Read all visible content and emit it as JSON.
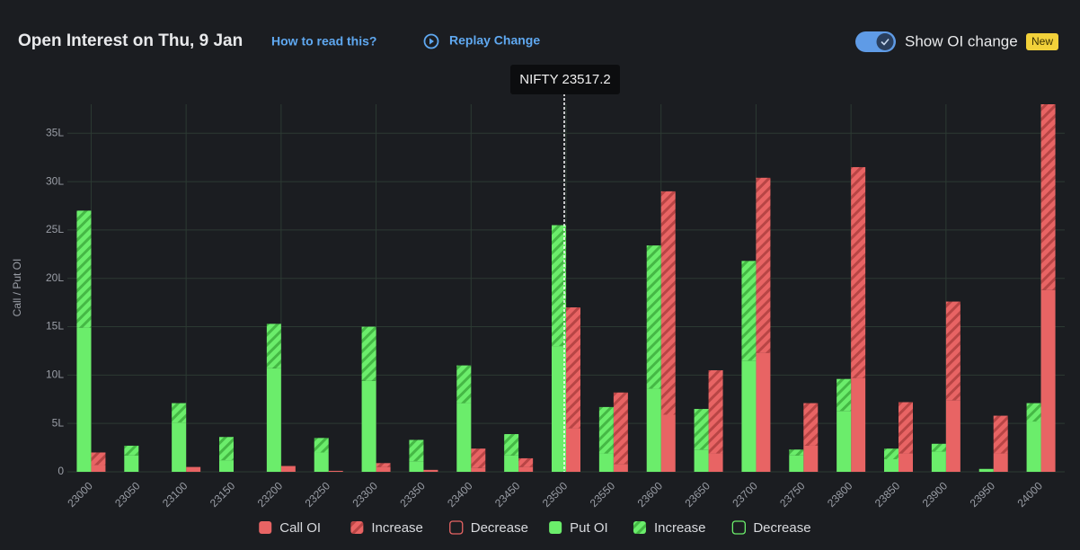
{
  "chart_data": {
    "type": "stacked-bar",
    "title": "Open Interest on Thu, 9 Jan",
    "help_link": "How to read this?",
    "replay_button": "Replay Change",
    "toggle_label": "Show OI change",
    "badge": "New",
    "spot_tooltip": "NIFTY 23517.2",
    "y_label": "Call / Put OI",
    "categories": [
      "23000",
      "23050",
      "23100",
      "23150",
      "23200",
      "23250",
      "23300",
      "23350",
      "23400",
      "23450",
      "23500",
      "23550",
      "23600",
      "23650",
      "23700",
      "23750",
      "23800",
      "23850",
      "23900",
      "23950",
      "24000"
    ],
    "ylim": [
      0,
      38
    ],
    "yticks": [
      0,
      {
        "value": 5,
        "label": "5L"
      },
      {
        "value": 10,
        "label": "10L"
      },
      {
        "value": 15,
        "label": "15L"
      },
      {
        "value": 20,
        "label": "20L"
      },
      {
        "value": 25,
        "label": "25L"
      },
      {
        "value": 30,
        "label": "30L"
      },
      {
        "value": 35,
        "label": "35L"
      }
    ],
    "grid": true,
    "series": [
      {
        "name": "Call OI",
        "color": "#e86464",
        "style": "solid",
        "side": "call",
        "values": [
          0.7,
          0,
          0.5,
          0,
          0.6,
          0.1,
          0.5,
          0.2,
          0.4,
          0.5,
          4.5,
          0.8,
          5.9,
          1.9,
          12.3,
          2.7,
          9.7,
          1.9,
          7.4,
          1.9,
          18.8
        ]
      },
      {
        "name": "Increase",
        "color": "#e86464",
        "style": "hatch",
        "side": "call",
        "values": [
          1.3,
          0,
          0,
          0,
          0,
          0,
          0.4,
          0,
          2.0,
          0.9,
          12.5,
          7.4,
          23.1,
          8.6,
          18.1,
          4.4,
          21.8,
          5.3,
          10.2,
          3.9,
          19.2
        ]
      },
      {
        "name": "Decrease",
        "color": "#e86464",
        "style": "outline",
        "side": "call"
      },
      {
        "name": "Put OI",
        "color": "#6bed6b",
        "style": "solid",
        "side": "put",
        "values": [
          14.9,
          1.7,
          5.1,
          1.2,
          10.7,
          2.0,
          9.4,
          1.1,
          7.1,
          1.7,
          13.0,
          1.9,
          8.6,
          2.3,
          11.5,
          1.7,
          6.3,
          1.3,
          2.1,
          0.3,
          5.2
        ]
      },
      {
        "name": "Increase",
        "color": "#6bed6b",
        "style": "hatch",
        "side": "put",
        "values": [
          12.1,
          1.0,
          2.0,
          2.4,
          4.6,
          1.5,
          5.6,
          2.2,
          3.9,
          2.2,
          12.5,
          4.8,
          14.8,
          4.2,
          10.3,
          0.6,
          3.3,
          1.1,
          0.8,
          0,
          1.9
        ]
      },
      {
        "name": "Decrease",
        "color": "#6bed6b",
        "style": "outline",
        "side": "put"
      }
    ]
  }
}
